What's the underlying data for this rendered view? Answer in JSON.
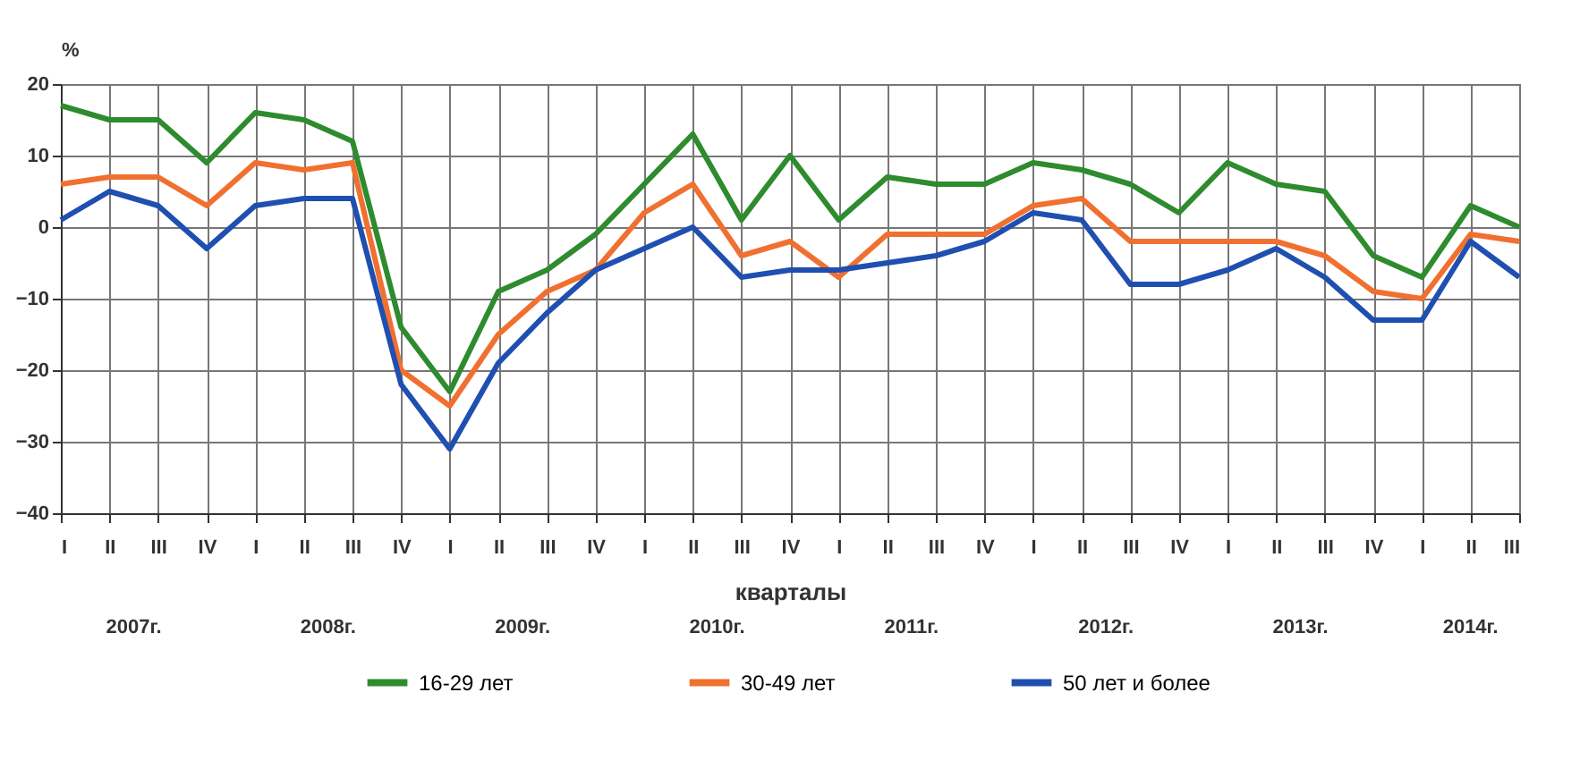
{
  "chart_data": {
    "type": "line",
    "ylabel": "%",
    "xlabel": "кварталы",
    "categories": [
      "I",
      "II",
      "III",
      "IV",
      "I",
      "II",
      "III",
      "IV",
      "I",
      "II",
      "III",
      "IV",
      "I",
      "II",
      "III",
      "IV",
      "I",
      "II",
      "III",
      "IV",
      "I",
      "II",
      "III",
      "IV",
      "I",
      "II",
      "III",
      "IV",
      "I",
      "II",
      "III"
    ],
    "annotations": [
      "2007г.",
      "2008г.",
      "2009г.",
      "2010г.",
      "2011г.",
      "2012г.",
      "2013г.",
      "2014г."
    ],
    "series": [
      {
        "name": "16-29 лет",
        "color": "#2e8b2e",
        "values": [
          17,
          15,
          15,
          9,
          16,
          15,
          12,
          -14,
          -23,
          -9,
          -6,
          -1,
          6,
          13,
          1,
          10,
          1,
          7,
          6,
          6,
          9,
          8,
          6,
          2,
          9,
          6,
          5,
          -4,
          -7,
          3,
          0
        ]
      },
      {
        "name": "30-49 лет",
        "color": "#f07030",
        "values": [
          6,
          7,
          7,
          3,
          9,
          8,
          9,
          -20,
          -25,
          -15,
          -9,
          -6,
          2,
          6,
          -4,
          -2,
          -7,
          -1,
          -1,
          -1,
          3,
          4,
          -2,
          -2,
          -2,
          -2,
          -4,
          -9,
          -10,
          -1,
          -2
        ]
      },
      {
        "name": "50 лет  и более",
        "color": "#1f4fb0",
        "values": [
          1,
          5,
          3,
          -3,
          3,
          4,
          4,
          -22,
          -31,
          -19,
          -12,
          -6,
          -3,
          0,
          -7,
          -6,
          -6,
          -5,
          -4,
          -2,
          2,
          1,
          -8,
          -8,
          -6,
          -3,
          -7,
          -13,
          -13,
          -2,
          -7
        ]
      }
    ],
    "ylim": [
      -40,
      20
    ],
    "yticks": [
      -40,
      -30,
      -20,
      -10,
      0,
      10,
      20
    ],
    "grid": true,
    "legend": "bottom",
    "marker": "none",
    "line_style": "solid"
  }
}
